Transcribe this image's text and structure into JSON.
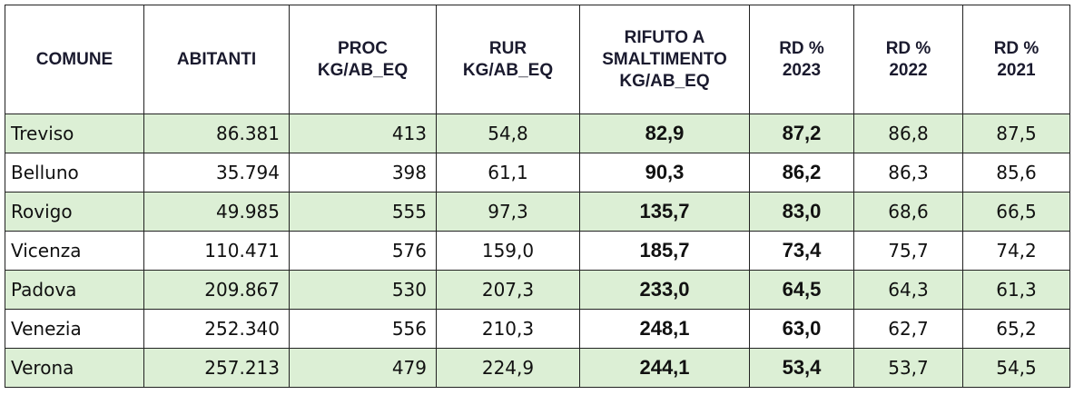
{
  "table": {
    "header": [
      [
        "COMUNE"
      ],
      [
        "ABITANTI"
      ],
      [
        "PROC",
        "KG/AB_EQ"
      ],
      [
        "RUR",
        "KG/AB_EQ"
      ],
      [
        "RIFUTO A",
        "SMALTIMENTO",
        "KG/AB_EQ"
      ],
      [
        "RD %",
        "2023"
      ],
      [
        "RD %",
        "2022"
      ],
      [
        "RD %",
        "2021"
      ]
    ],
    "rows": [
      [
        "Treviso",
        "86.381",
        "413",
        "54,8",
        "82,9",
        "87,2",
        "86,8",
        "87,5"
      ],
      [
        "Belluno",
        "35.794",
        "398",
        "61,1",
        "90,3",
        "86,2",
        "86,3",
        "85,6"
      ],
      [
        "Rovigo",
        "49.985",
        "555",
        "97,3",
        "135,7",
        "83,0",
        "68,6",
        "66,5"
      ],
      [
        "Vicenza",
        "110.471",
        "576",
        "159,0",
        "185,7",
        "73,4",
        "75,7",
        "74,2"
      ],
      [
        "Padova",
        "209.867",
        "530",
        "207,3",
        "233,0",
        "64,5",
        "64,3",
        "61,3"
      ],
      [
        "Venezia",
        "252.340",
        "556",
        "210,3",
        "248,1",
        "63,0",
        "62,7",
        "65,2"
      ],
      [
        "Verona",
        "257.213",
        "479",
        "224,9",
        "244,1",
        "53,4",
        "53,7",
        "54,5"
      ]
    ]
  }
}
